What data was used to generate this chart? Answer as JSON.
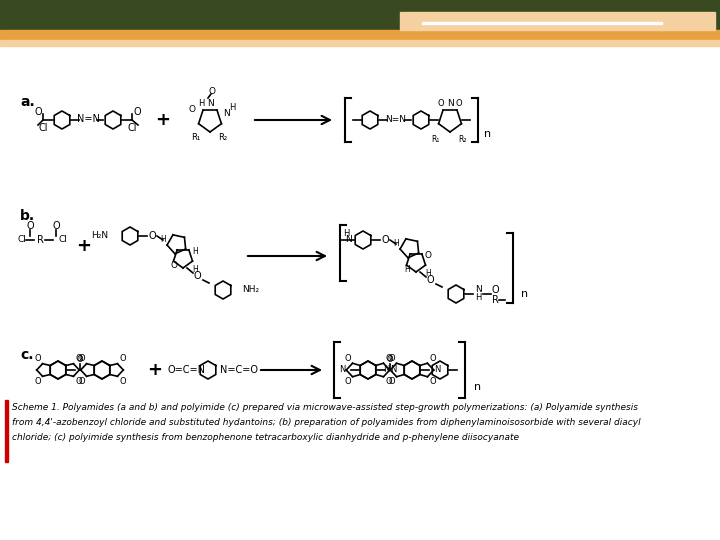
{
  "bg_color": "#ffffff",
  "header_dark_color": "#3a4a20",
  "header_orange_color": "#e8a040",
  "header_light_orange": "#f5d0a0",
  "red_bar_color": "#cc0000",
  "caption_color": "#000000",
  "caption_fontsize": 6.5,
  "label_a": "a.",
  "label_b": "b.",
  "label_c": "c.",
  "caption_lines": [
    "Scheme 1. Polyamides (a and b) and polyimide (c) prepared via microwave-assisted step-growth polymerizations: (a) Polyamide synthesis",
    "from 4,4'-azobenzoyl chloride and substituted hydantoins; (b) preparation of polyamides from diphenylaminoisosorbide with several diacyl",
    "chloride; (c) polyimide synthesis from benzophenone tetracarboxylic dianhydride and p-phenylene diisocyanate"
  ]
}
